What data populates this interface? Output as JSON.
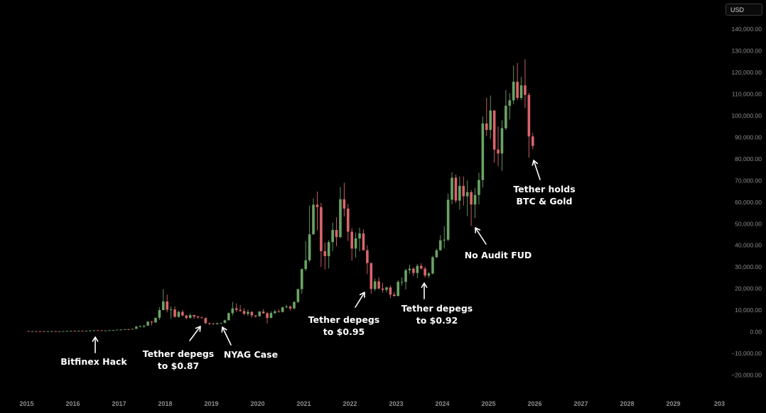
{
  "currency": "USD",
  "colors": {
    "background": "#000000",
    "up": "#6aa463",
    "down": "#d9656b",
    "axis_text": "#8c8c8c",
    "annotation": "#ffffff"
  },
  "chart_data": {
    "type": "candlestick",
    "interval": "monthly",
    "ylim": [
      -25000,
      145000
    ],
    "y_ticks": [
      -20000,
      -10000,
      0,
      10000,
      20000,
      30000,
      40000,
      50000,
      60000,
      70000,
      80000,
      90000,
      100000,
      110000,
      120000,
      130000,
      140000
    ],
    "y_tick_labels": [
      "−20,000.00",
      "−10,000.00",
      "0.00",
      "10,000.00",
      "20,000.00",
      "30,000.00",
      "40,000.00",
      "50,000.00",
      "60,000.00",
      "70,000.00",
      "80,000.00",
      "90,000.00",
      "100,000.00",
      "110,000.00",
      "120,000.00",
      "130,000.00",
      "140,000.00"
    ],
    "x_ticks": [
      "2015",
      "2016",
      "2017",
      "2018",
      "2019",
      "2020",
      "2021",
      "2022",
      "2023",
      "2024",
      "2025",
      "2026",
      "2027",
      "2028",
      "2029",
      "203"
    ],
    "grid": false,
    "candles": [
      [
        "2015-01",
        320,
        320,
        170,
        220
      ],
      [
        "2015-02",
        220,
        260,
        200,
        250
      ],
      [
        "2015-03",
        250,
        300,
        240,
        245
      ],
      [
        "2015-04",
        245,
        260,
        220,
        235
      ],
      [
        "2015-05",
        235,
        245,
        225,
        230
      ],
      [
        "2015-06",
        230,
        270,
        220,
        265
      ],
      [
        "2015-07",
        265,
        315,
        250,
        285
      ],
      [
        "2015-08",
        285,
        285,
        200,
        230
      ],
      [
        "2015-09",
        230,
        245,
        225,
        237
      ],
      [
        "2015-10",
        237,
        330,
        235,
        315
      ],
      [
        "2015-11",
        315,
        500,
        300,
        378
      ],
      [
        "2015-12",
        378,
        465,
        350,
        430
      ],
      [
        "2016-01",
        430,
        460,
        350,
        370
      ],
      [
        "2016-02",
        370,
        445,
        365,
        437
      ],
      [
        "2016-03",
        437,
        440,
        400,
        416
      ],
      [
        "2016-04",
        416,
        470,
        410,
        448
      ],
      [
        "2016-05",
        448,
        550,
        440,
        530
      ],
      [
        "2016-06",
        530,
        780,
        520,
        670
      ],
      [
        "2016-07",
        670,
        700,
        600,
        624
      ],
      [
        "2016-08",
        624,
        620,
        530,
        573
      ],
      [
        "2016-09",
        573,
        620,
        570,
        608
      ],
      [
        "2016-10",
        608,
        720,
        605,
        700
      ],
      [
        "2016-11",
        700,
        750,
        680,
        745
      ],
      [
        "2016-12",
        745,
        970,
        740,
        960
      ],
      [
        "2017-01",
        960,
        1150,
        750,
        965
      ],
      [
        "2017-02",
        965,
        1200,
        920,
        1190
      ],
      [
        "2017-03",
        1190,
        1300,
        900,
        1080
      ],
      [
        "2017-04",
        1080,
        1350,
        1070,
        1350
      ],
      [
        "2017-05",
        1350,
        2800,
        1340,
        2300
      ],
      [
        "2017-06",
        2300,
        3000,
        2100,
        2480
      ],
      [
        "2017-07",
        2480,
        2950,
        1800,
        2875
      ],
      [
        "2017-08",
        2875,
        4700,
        2700,
        4700
      ],
      [
        "2017-09",
        4700,
        5000,
        2900,
        4340
      ],
      [
        "2017-10",
        4340,
        6400,
        4100,
        6460
      ],
      [
        "2017-11",
        6460,
        11400,
        5500,
        10000
      ],
      [
        "2017-12",
        10000,
        19700,
        10000,
        14000
      ],
      [
        "2018-01",
        14000,
        17200,
        9000,
        10200
      ],
      [
        "2018-02",
        10200,
        11800,
        6000,
        10300
      ],
      [
        "2018-03",
        10300,
        11700,
        6600,
        6900
      ],
      [
        "2018-04",
        6900,
        9700,
        6500,
        9200
      ],
      [
        "2018-05",
        9200,
        10000,
        7200,
        7500
      ],
      [
        "2018-06",
        7500,
        7800,
        5800,
        6400
      ],
      [
        "2018-07",
        6400,
        8500,
        6100,
        7700
      ],
      [
        "2018-08",
        7700,
        7800,
        5900,
        7000
      ],
      [
        "2018-09",
        7000,
        7400,
        6100,
        6600
      ],
      [
        "2018-10",
        6600,
        7000,
        6200,
        6300
      ],
      [
        "2018-11",
        6300,
        6600,
        3500,
        4000
      ],
      [
        "2018-12",
        4000,
        4200,
        3100,
        3700
      ],
      [
        "2019-01",
        3700,
        4100,
        3400,
        3450
      ],
      [
        "2019-02",
        3450,
        4200,
        3400,
        3850
      ],
      [
        "2019-03",
        3850,
        4100,
        3700,
        4100
      ],
      [
        "2019-04",
        4100,
        5600,
        4000,
        5300
      ],
      [
        "2019-05",
        5300,
        9000,
        5300,
        8600
      ],
      [
        "2019-06",
        8600,
        13800,
        7500,
        10800
      ],
      [
        "2019-07",
        10800,
        13100,
        9100,
        10100
      ],
      [
        "2019-08",
        10100,
        12300,
        9300,
        9600
      ],
      [
        "2019-09",
        9600,
        10900,
        7700,
        8300
      ],
      [
        "2019-10",
        8300,
        10300,
        7300,
        9200
      ],
      [
        "2019-11",
        9200,
        9500,
        6500,
        7600
      ],
      [
        "2019-12",
        7600,
        7700,
        6400,
        7200
      ],
      [
        "2020-01",
        7200,
        9600,
        6900,
        9350
      ],
      [
        "2020-02",
        9350,
        10500,
        8400,
        8550
      ],
      [
        "2020-03",
        8550,
        9200,
        3800,
        6400
      ],
      [
        "2020-04",
        6400,
        9500,
        6200,
        8650
      ],
      [
        "2020-05",
        8650,
        10100,
        8100,
        9450
      ],
      [
        "2020-06",
        9450,
        10400,
        8900,
        9140
      ],
      [
        "2020-07",
        9140,
        11500,
        8900,
        11350
      ],
      [
        "2020-08",
        11350,
        12500,
        10900,
        11650
      ],
      [
        "2020-09",
        11650,
        12100,
        9900,
        10800
      ],
      [
        "2020-10",
        10800,
        14100,
        10400,
        13800
      ],
      [
        "2020-11",
        13800,
        19900,
        13300,
        19700
      ],
      [
        "2020-12",
        19700,
        29300,
        17600,
        29000
      ],
      [
        "2021-01",
        29000,
        42000,
        28100,
        33100
      ],
      [
        "2021-02",
        33100,
        58400,
        32300,
        45100
      ],
      [
        "2021-03",
        45100,
        61800,
        44900,
        58800
      ],
      [
        "2021-04",
        58800,
        64900,
        47000,
        57700
      ],
      [
        "2021-05",
        57700,
        59600,
        30000,
        37300
      ],
      [
        "2021-06",
        37300,
        41300,
        28800,
        35000
      ],
      [
        "2021-07",
        35000,
        42400,
        29300,
        41500
      ],
      [
        "2021-08",
        41500,
        50500,
        37300,
        47100
      ],
      [
        "2021-09",
        47100,
        53000,
        39600,
        43800
      ],
      [
        "2021-10",
        43800,
        67000,
        43300,
        61300
      ],
      [
        "2021-11",
        61300,
        69000,
        53300,
        57000
      ],
      [
        "2021-12",
        57000,
        59100,
        42000,
        46300
      ],
      [
        "2022-01",
        46300,
        47900,
        32900,
        38500
      ],
      [
        "2022-02",
        38500,
        45800,
        34300,
        43200
      ],
      [
        "2022-03",
        43200,
        48200,
        37200,
        45500
      ],
      [
        "2022-04",
        45500,
        47400,
        37600,
        37700
      ],
      [
        "2022-05",
        37700,
        40000,
        26700,
        31800
      ],
      [
        "2022-06",
        31800,
        31900,
        17600,
        19800
      ],
      [
        "2022-07",
        19800,
        24700,
        18800,
        23300
      ],
      [
        "2022-08",
        23300,
        25200,
        19600,
        20000
      ],
      [
        "2022-09",
        20000,
        22700,
        18200,
        19400
      ],
      [
        "2022-10",
        19400,
        20900,
        18200,
        20500
      ],
      [
        "2022-11",
        20500,
        21400,
        15500,
        17200
      ],
      [
        "2022-12",
        17200,
        18400,
        16300,
        16500
      ],
      [
        "2023-01",
        16500,
        23900,
        16500,
        23100
      ],
      [
        "2023-02",
        23100,
        25200,
        21400,
        23100
      ],
      [
        "2023-03",
        23100,
        29200,
        19600,
        28500
      ],
      [
        "2023-04",
        28500,
        31000,
        26900,
        29200
      ],
      [
        "2023-05",
        29200,
        29800,
        25800,
        27200
      ],
      [
        "2023-06",
        27200,
        31400,
        24800,
        30500
      ],
      [
        "2023-07",
        30500,
        31800,
        28900,
        29200
      ],
      [
        "2023-08",
        29200,
        30200,
        25100,
        26000
      ],
      [
        "2023-09",
        26000,
        27500,
        24900,
        27000
      ],
      [
        "2023-10",
        27000,
        35200,
        26500,
        34500
      ],
      [
        "2023-11",
        34500,
        38400,
        34100,
        37700
      ],
      [
        "2023-12",
        37700,
        44700,
        37600,
        42300
      ],
      [
        "2024-01",
        42300,
        48900,
        38500,
        42600
      ],
      [
        "2024-02",
        42600,
        63900,
        41900,
        61100
      ],
      [
        "2024-03",
        61100,
        73800,
        59000,
        71300
      ],
      [
        "2024-04",
        71300,
        72800,
        59600,
        60700
      ],
      [
        "2024-05",
        60700,
        71900,
        56500,
        67500
      ],
      [
        "2024-06",
        67500,
        71900,
        58400,
        62700
      ],
      [
        "2024-07",
        62700,
        70000,
        53500,
        64600
      ],
      [
        "2024-08",
        64600,
        65600,
        49000,
        58900
      ],
      [
        "2024-09",
        58900,
        66500,
        52600,
        63300
      ],
      [
        "2024-10",
        63300,
        73600,
        58900,
        70200
      ],
      [
        "2024-11",
        70200,
        99600,
        66800,
        96400
      ],
      [
        "2024-12",
        96400,
        108300,
        90500,
        93400
      ],
      [
        "2025-01",
        93400,
        109300,
        89200,
        102400
      ],
      [
        "2025-02",
        102400,
        102500,
        78200,
        84300
      ],
      [
        "2025-03",
        84300,
        95000,
        76600,
        82500
      ],
      [
        "2025-04",
        82500,
        97900,
        74500,
        94200
      ],
      [
        "2025-05",
        94200,
        111900,
        93400,
        104600
      ],
      [
        "2025-06",
        104600,
        110400,
        98200,
        107100
      ],
      [
        "2025-07",
        107100,
        123200,
        105300,
        115700
      ],
      [
        "2025-08",
        115700,
        124400,
        107300,
        108200
      ],
      [
        "2025-09",
        108200,
        117900,
        107300,
        114000
      ],
      [
        "2025-10",
        114000,
        126200,
        103500,
        109600
      ],
      [
        "2025-11",
        109600,
        110600,
        80600,
        90400
      ],
      [
        "2025-12",
        90400,
        92000,
        84500,
        86000
      ]
    ],
    "annotations": [
      {
        "id": "bitfinex-hack",
        "lines": [
          "Bitfinex Hack"
        ]
      },
      {
        "id": "tether-depegs-087",
        "lines": [
          "Tether depegs",
          "to $0.87"
        ]
      },
      {
        "id": "nyag-case",
        "lines": [
          "NYAG Case"
        ]
      },
      {
        "id": "tether-depegs-095",
        "lines": [
          "Tether depegs",
          "to $0.95"
        ]
      },
      {
        "id": "tether-depegs-092",
        "lines": [
          "Tether depegs",
          "to $0.92"
        ]
      },
      {
        "id": "no-audit-fud",
        "lines": [
          "No Audit FUD"
        ]
      },
      {
        "id": "tether-holds",
        "lines": [
          "Tether holds",
          "BTC & Gold"
        ]
      }
    ]
  }
}
